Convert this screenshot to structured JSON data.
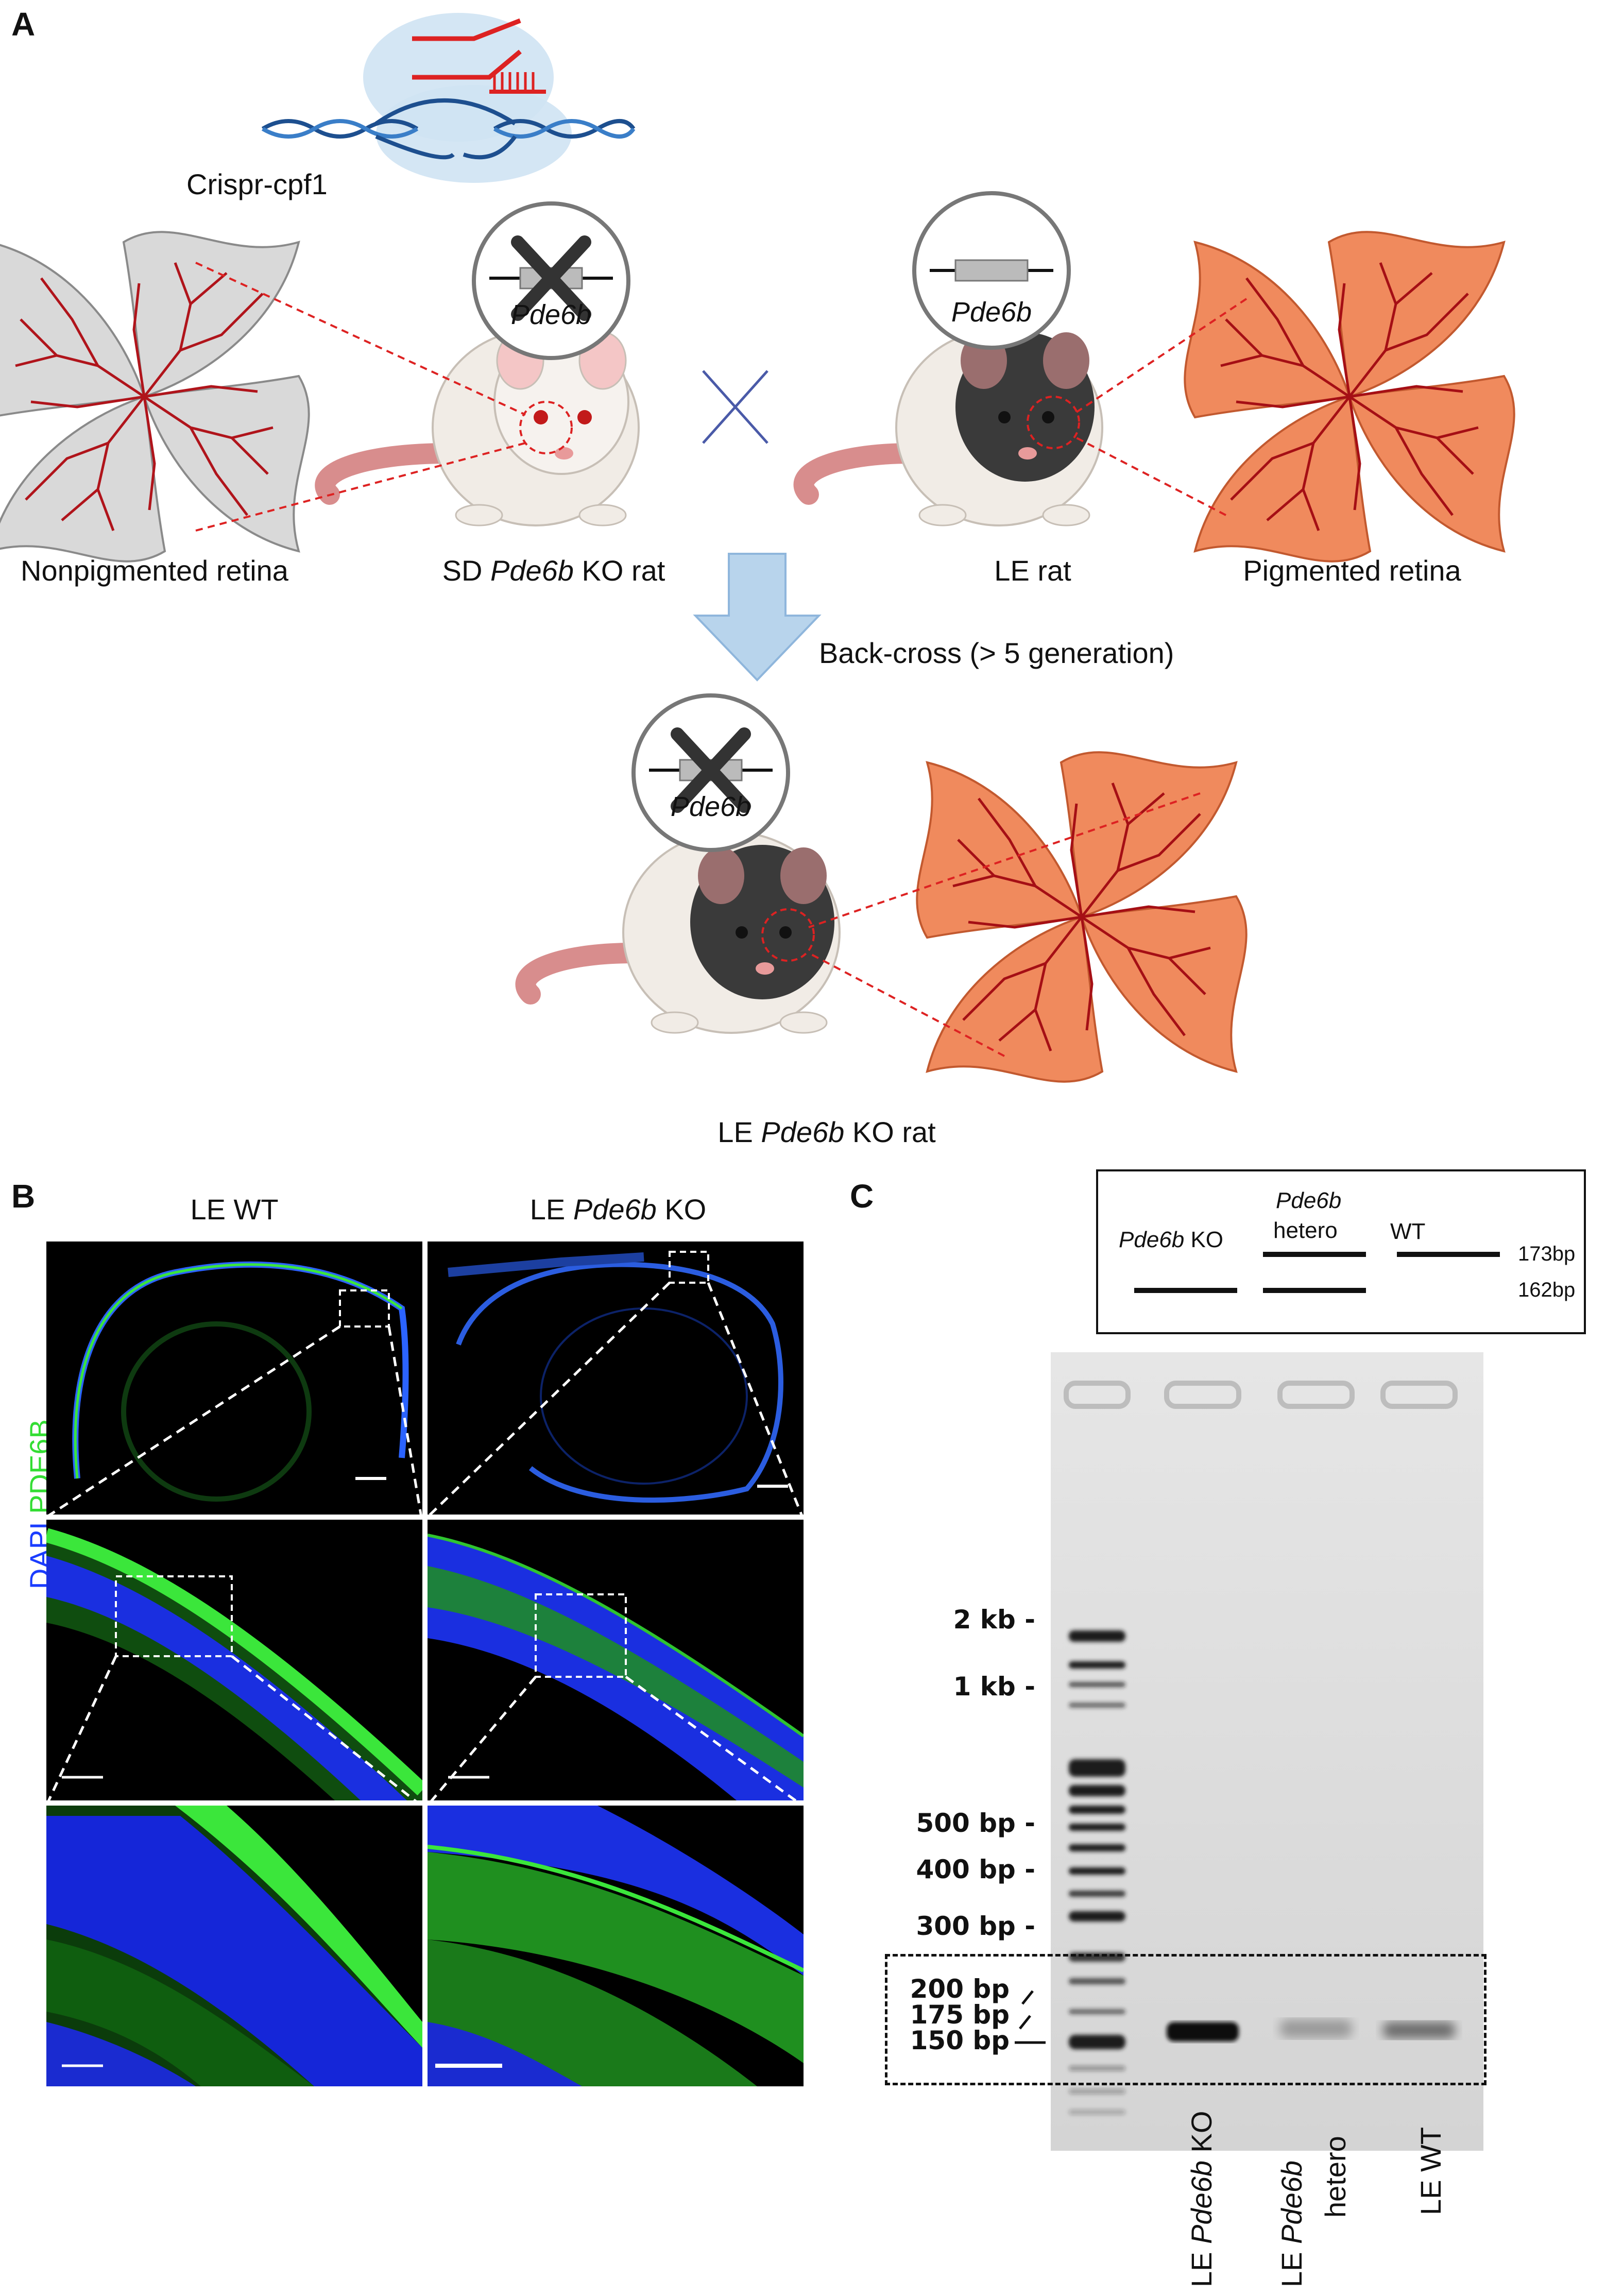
{
  "panels": {
    "a": "A",
    "b": "B",
    "c": "C"
  },
  "panel_a": {
    "enzyme_label": "Crispr-cpf1",
    "gene": "Pde6b",
    "nonpigmented_retina": "Nonpigmented retina",
    "sd_rat": {
      "prefix": "SD ",
      "gene": "Pde6b",
      "suffix": " KO rat"
    },
    "le_rat": "LE rat",
    "pigmented_retina": "Pigmented retina",
    "backcross": "Back-cross (> 5 generation)",
    "le_ko_rat": {
      "prefix": "LE ",
      "gene": "Pde6b",
      "suffix": " KO rat"
    },
    "colors": {
      "albino_retina": "#d9d9d9",
      "pigmented_retina": "#f08a5d",
      "vessel": "#b0141b",
      "arrow": "#b8d4ec"
    }
  },
  "panel_b": {
    "col_wt": "LE WT",
    "col_ko": {
      "prefix": "LE ",
      "gene": "Pde6b",
      "suffix": " KO"
    },
    "stain_blue": "DAPI",
    "stain_green": "PDE6B",
    "colors": {
      "dapi": "#1a3cff",
      "pde6b": "#33dd33"
    }
  },
  "panel_c": {
    "legend": {
      "ko": {
        "gene": "Pde6b",
        "suffix": " KO"
      },
      "hetero": {
        "gene": "Pde6b",
        "suffix": "hetero"
      },
      "wt": "WT",
      "bp_173": "173bp",
      "bp_162": "162bp"
    },
    "ladder": [
      "2 kb -",
      "1 kb -",
      "500 bp -",
      "400 bp -",
      "300 bp -",
      "200 bp",
      "175 bp",
      "150 bp"
    ],
    "lanes": {
      "ko": {
        "prefix": "LE ",
        "gene": "Pde6b",
        "suffix": " KO"
      },
      "hetero": {
        "prefix": "LE ",
        "gene": "Pde6b",
        "suffix": "hetero"
      },
      "wt": "LE WT"
    }
  }
}
